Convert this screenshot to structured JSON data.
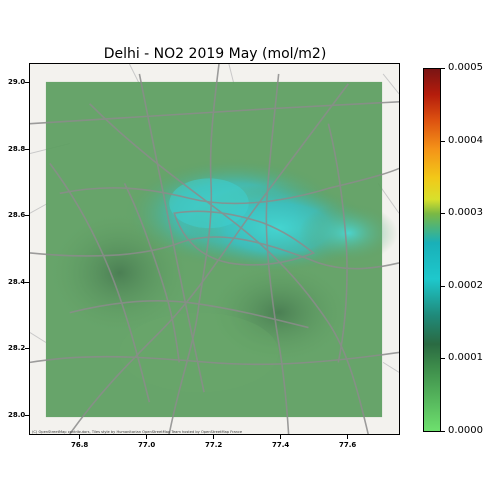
{
  "title": "Delhi - NO2 2019 May (mol/m2)",
  "map": {
    "attribution": "(C) OpenStreetMap contributors, Tiles style by Humanitarian OpenStreetMap Team hosted by OpenStreetMap France",
    "x_ticks": [
      "76.8",
      "77.0",
      "77.2",
      "77.4",
      "77.6"
    ],
    "y_ticks": [
      "29.0",
      "28.8",
      "28.6",
      "28.4",
      "28.2",
      "28.0"
    ],
    "overlay_color": "#5f9f62",
    "hotspot_color": "#3ecfcf",
    "road_color": "#8c8c8c"
  },
  "colorbar": {
    "ticks": [
      "0.0005",
      "0.0004",
      "0.0003",
      "0.0002",
      "0.0001",
      "0.0000"
    ]
  }
}
